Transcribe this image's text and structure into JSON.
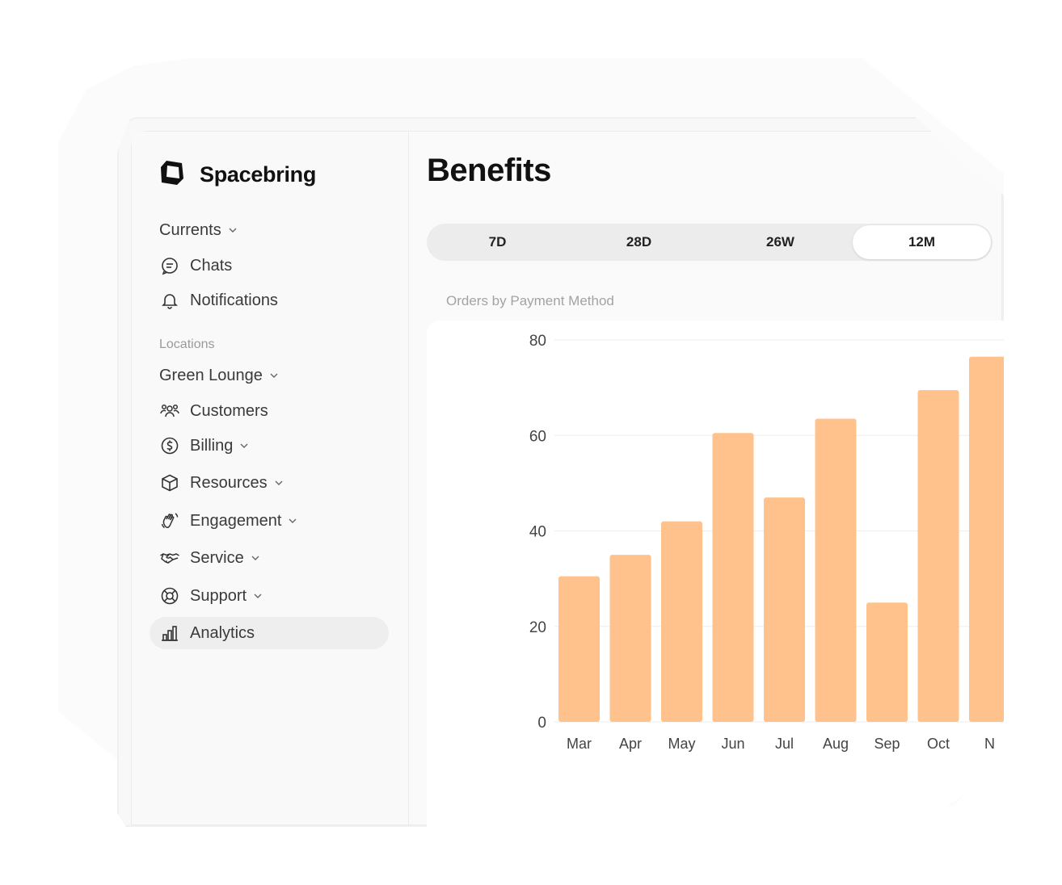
{
  "app": {
    "brand": "Spacebring",
    "brand_icon": "spacebring-logo-icon"
  },
  "sidebar": {
    "currents": {
      "label": "Currents",
      "icon": "chevron-down-icon"
    },
    "chats": {
      "label": "Chats",
      "icon": "chat-bubble-icon"
    },
    "notifications": {
      "label": "Notifications",
      "icon": "bell-icon"
    },
    "locations_heading": "Locations",
    "location": {
      "label": "Green Lounge",
      "icon": "chevron-down-icon"
    },
    "items": [
      {
        "label": "Customers",
        "icon": "users-icon",
        "has_chevron": false
      },
      {
        "label": "Billing",
        "icon": "dollar-circle-icon",
        "has_chevron": true
      },
      {
        "label": "Resources",
        "icon": "cube-icon",
        "has_chevron": true
      },
      {
        "label": "Engagement",
        "icon": "waving-hand-icon",
        "has_chevron": true
      },
      {
        "label": "Service",
        "icon": "handshake-icon",
        "has_chevron": true
      },
      {
        "label": "Support",
        "icon": "lifebuoy-icon",
        "has_chevron": true
      },
      {
        "label": "Analytics",
        "icon": "bar-chart-icon",
        "has_chevron": false,
        "active": true
      }
    ]
  },
  "main": {
    "title": "Benefits",
    "ranges": [
      {
        "label": "7D",
        "active": false
      },
      {
        "label": "28D",
        "active": false
      },
      {
        "label": "26W",
        "active": false
      },
      {
        "label": "12M",
        "active": true
      }
    ],
    "chart_caption": "Orders by Payment Method"
  },
  "chart_data": {
    "type": "bar",
    "categories": [
      "Mar",
      "Apr",
      "May",
      "Jun",
      "Jul",
      "Aug",
      "Sep",
      "Oct",
      "N"
    ],
    "values": [
      30.5,
      35,
      42,
      60.5,
      47,
      63.5,
      25,
      69.5,
      76.5
    ],
    "ylim": [
      0,
      80
    ],
    "yticks": [
      "0",
      "20",
      "40",
      "60",
      "80"
    ],
    "grid": true,
    "bar_color": "#FFC28C",
    "title": "Orders by Payment Method"
  }
}
